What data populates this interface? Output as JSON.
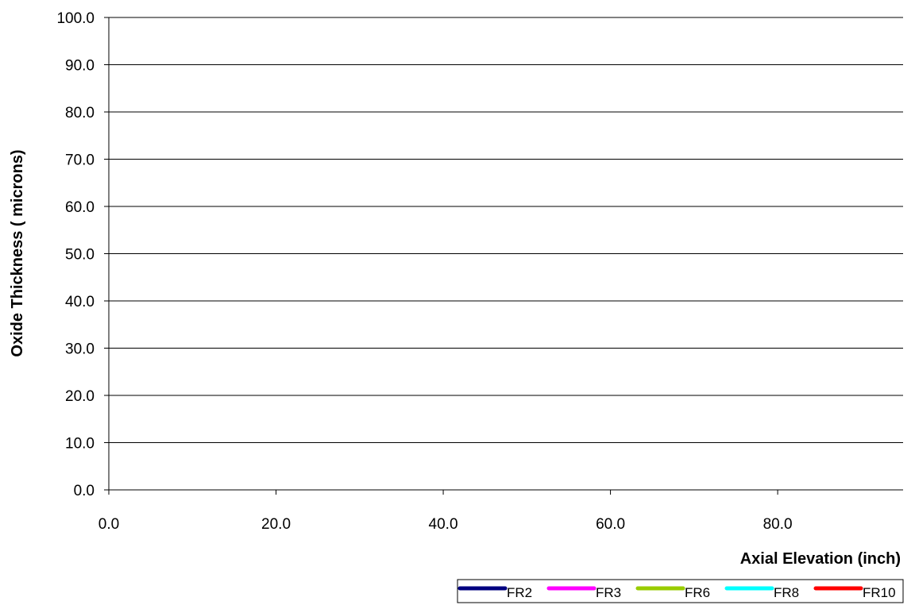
{
  "chart_data": {
    "type": "line",
    "title": "",
    "xlabel": "Axial Elevation (inch)",
    "ylabel": "Oxide Thickness ( microns)",
    "xlim": [
      0,
      95
    ],
    "ylim": [
      0,
      100
    ],
    "x_ticks": [
      0,
      20,
      40,
      60,
      80
    ],
    "x_tick_labels": [
      "0.0",
      "20.0",
      "40.0",
      "60.0",
      "80.0"
    ],
    "y_ticks": [
      0,
      10,
      20,
      30,
      40,
      50,
      60,
      70,
      80,
      90,
      100
    ],
    "y_tick_labels": [
      "0.0",
      "10.0",
      "20.0",
      "30.0",
      "40.0",
      "50.0",
      "60.0",
      "70.0",
      "80.0",
      "90.0",
      "100.0"
    ],
    "grid": {
      "horizontal": true,
      "vertical": false
    },
    "legend_position": "bottom-right",
    "series": [
      {
        "name": "FR2",
        "color": "#000080",
        "x": [],
        "y": []
      },
      {
        "name": "FR3",
        "color": "#FF00FF",
        "x": [],
        "y": []
      },
      {
        "name": "FR6",
        "color": "#99CC00",
        "x": [],
        "y": []
      },
      {
        "name": "FR8",
        "color": "#00FFFF",
        "x": [],
        "y": []
      },
      {
        "name": "FR10",
        "color": "#FF0000",
        "x": [],
        "y": []
      }
    ]
  }
}
